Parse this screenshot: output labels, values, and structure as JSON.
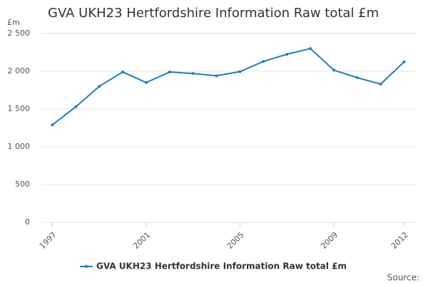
{
  "chart_data": {
    "type": "line",
    "title": "GVA UKH23 Hertfordshire Information Raw total £m",
    "ylabel": "£m",
    "source": "Source:",
    "x": [
      1997,
      1998,
      1999,
      2000,
      2001,
      2002,
      2003,
      2004,
      2005,
      2006,
      2007,
      2008,
      2009,
      2010,
      2011,
      2012
    ],
    "series": [
      {
        "name": "GVA UKH23 Hertfordshire Information Raw total £m",
        "color": "#1a7fc1",
        "values": [
          1290,
          1530,
          1800,
          1990,
          1850,
          1990,
          1970,
          1940,
          1995,
          2130,
          2225,
          2300,
          2015,
          1915,
          1830,
          2125
        ]
      }
    ],
    "xlim": [
      1996.5,
      2012.5
    ],
    "xticks": [
      1997,
      2001,
      2005,
      2009,
      2012
    ],
    "ylim": [
      0,
      2500
    ],
    "yticks": [
      0,
      500,
      {
        "value": 1000,
        "label": "1 000"
      },
      {
        "value": 1500,
        "label": "1 500"
      },
      {
        "value": 2000,
        "label": "2 000"
      },
      {
        "value": 2500,
        "label": "2 500"
      }
    ],
    "grid": true,
    "legend": "bottom"
  }
}
